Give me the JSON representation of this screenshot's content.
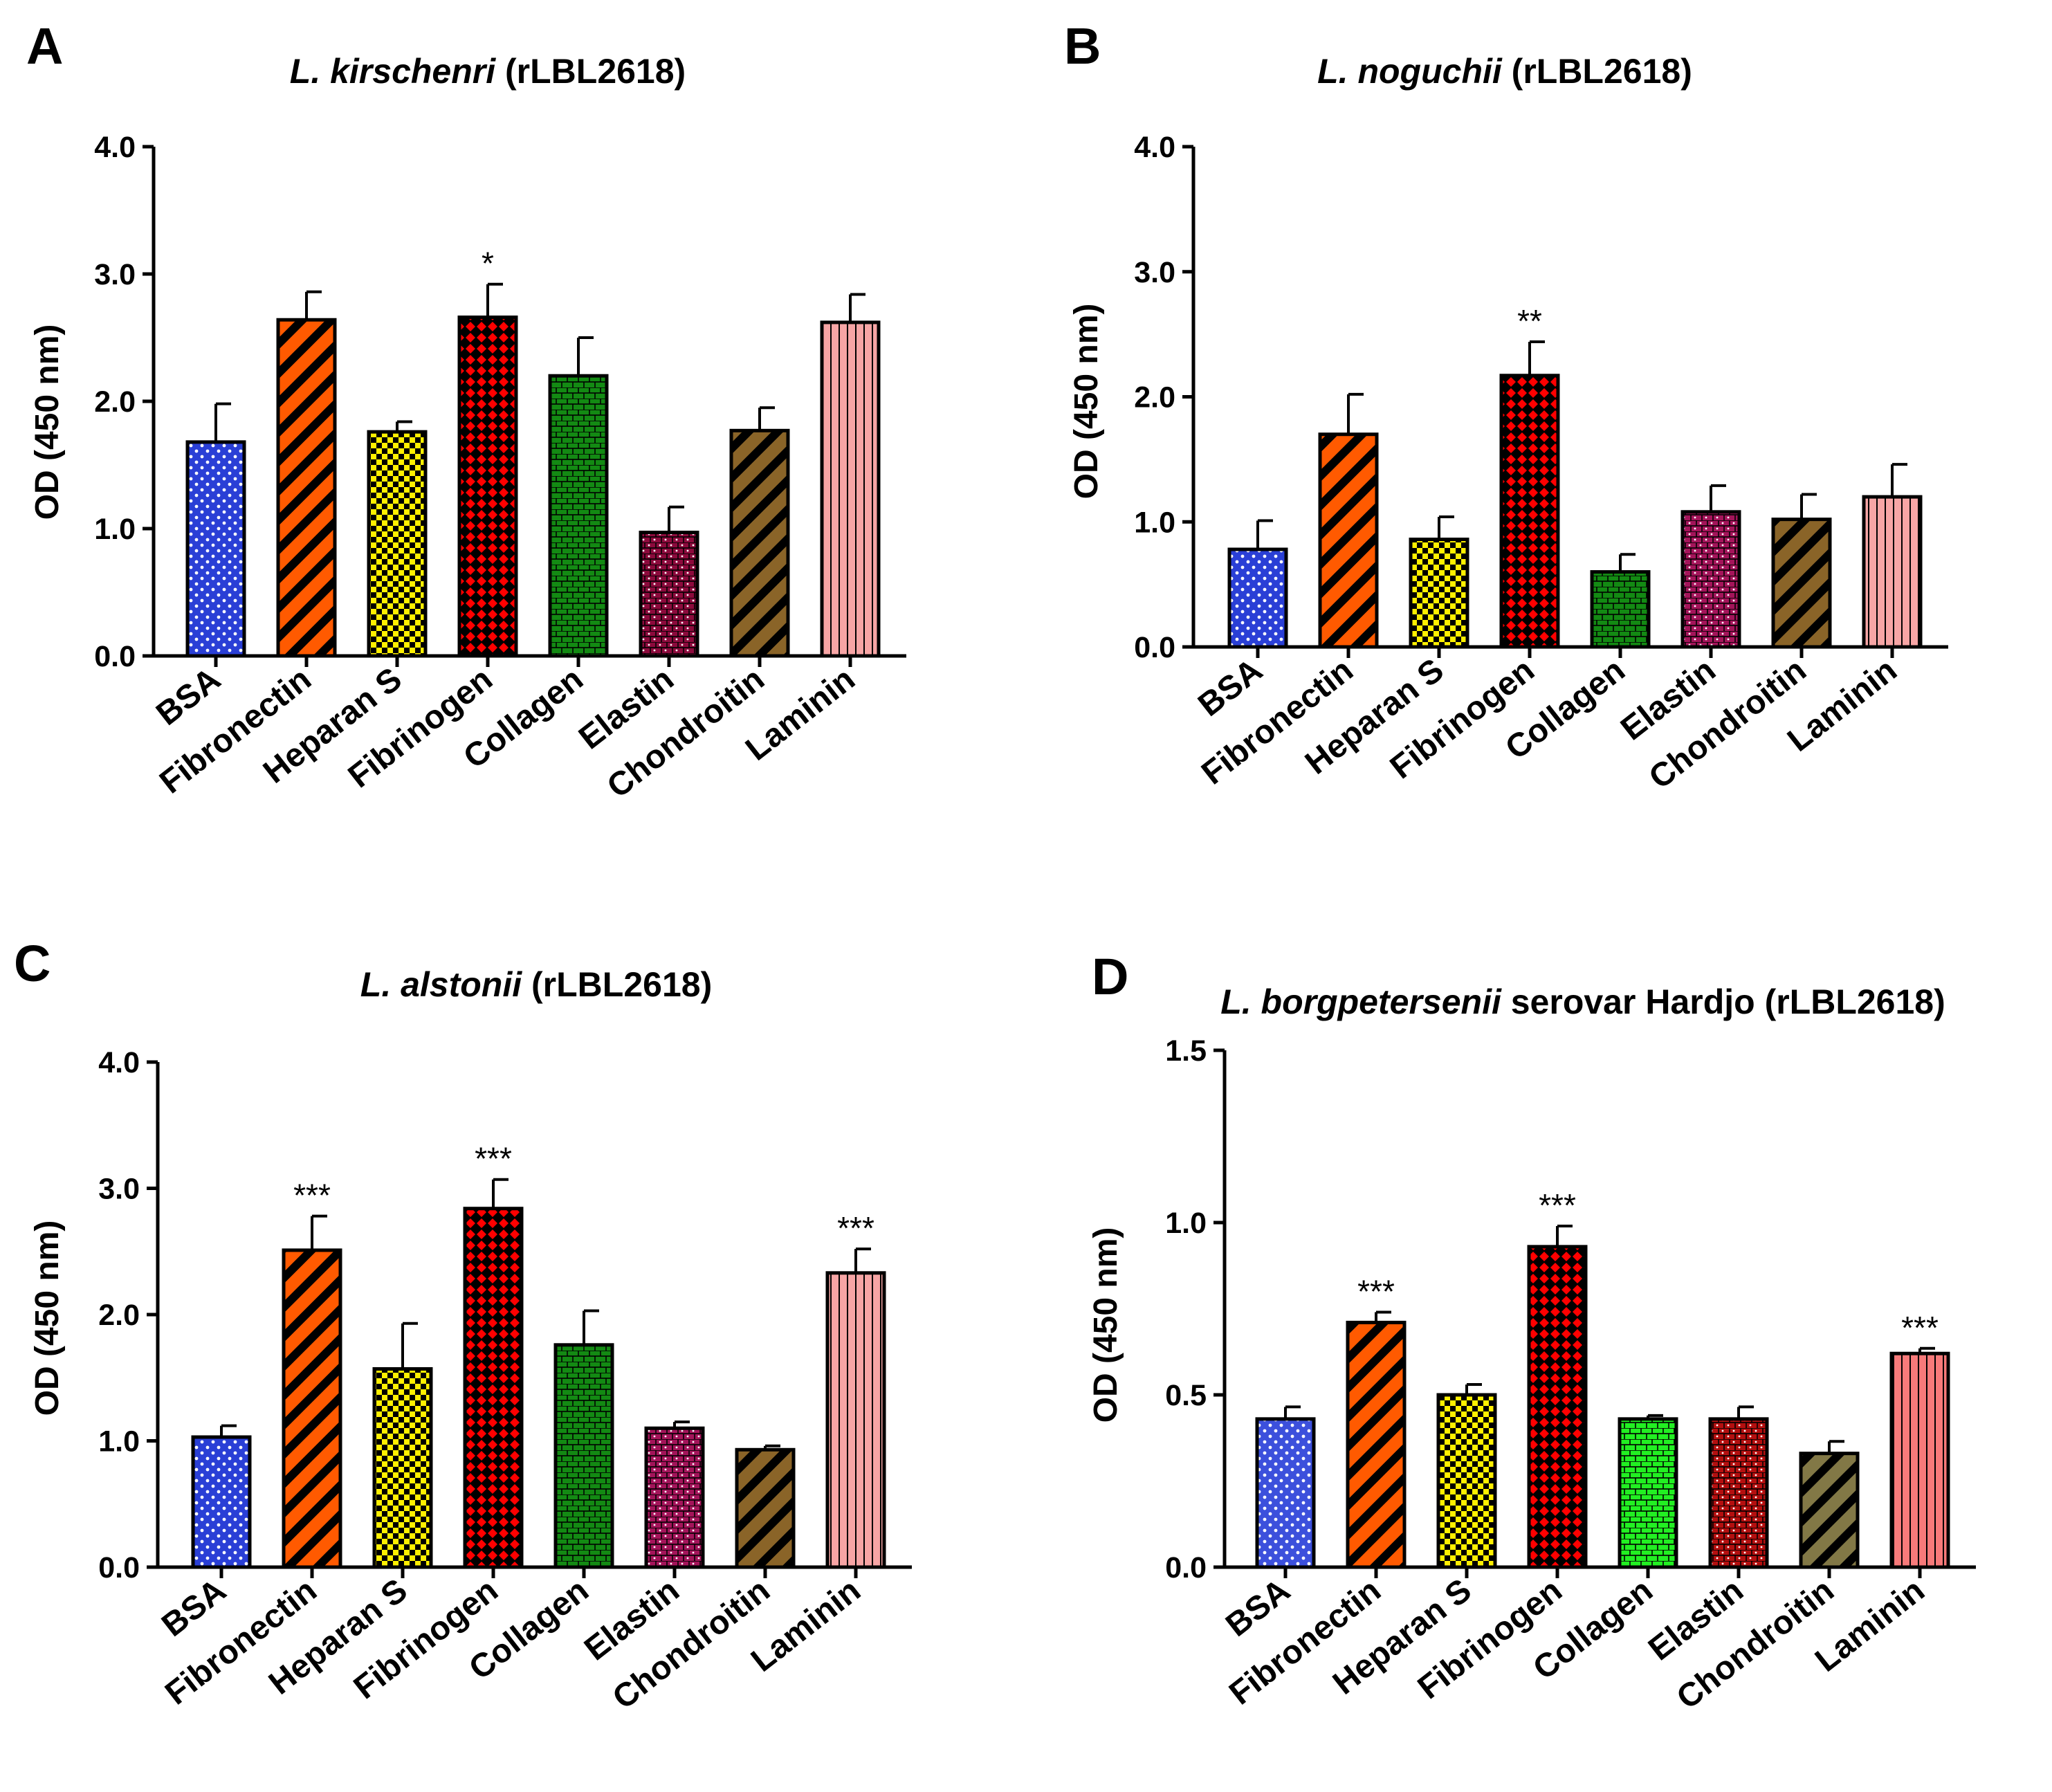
{
  "figure": {
    "panels": [
      {
        "letter": "A",
        "title_italic": "L. kirschenri",
        "title_rest": " (rLBL2618)"
      },
      {
        "letter": "B",
        "title_italic": "L. noguchii",
        "title_rest": " (rLBL2618)"
      },
      {
        "letter": "C",
        "title_italic": "L. alstonii",
        "title_rest": " (rLBL2618)"
      },
      {
        "letter": "D",
        "title_italic": "L. borgpetersenii",
        "title_rest": " serovar Hardjo (rLBL2618)"
      }
    ]
  },
  "chart_data": [
    {
      "type": "bar",
      "panel": "A",
      "title": "L. kirschenri (rLBL2618)",
      "xlabel": "",
      "ylabel": "OD (450 nm)",
      "ylim": [
        0,
        4
      ],
      "yticks": [
        "0.0",
        "1.0",
        "2.0",
        "3.0",
        "4.0"
      ],
      "categories": [
        "BSA",
        "Fibronectin",
        "Heparan S",
        "Fibrinogen",
        "Collagen",
        "Elastin",
        "Chondroitin",
        "Laminin"
      ],
      "values": [
        1.68,
        2.64,
        1.76,
        2.66,
        2.2,
        0.97,
        1.77,
        2.62
      ],
      "errors": [
        0.3,
        0.22,
        0.08,
        0.26,
        0.3,
        0.2,
        0.18,
        0.22
      ],
      "significance": [
        "",
        "",
        "",
        "*",
        "",
        "",
        "",
        ""
      ],
      "colors": [
        "#2a3fd6",
        "#ff5a00",
        "#fff000",
        "#ff0000",
        "#138a13",
        "#8c0a3c",
        "#8a6428",
        "#f7a5a5"
      ]
    },
    {
      "type": "bar",
      "panel": "B",
      "title": "L. noguchii (rLBL2618)",
      "xlabel": "",
      "ylabel": "OD (450 nm)",
      "ylim": [
        0,
        4
      ],
      "yticks": [
        "0.0",
        "1.0",
        "2.0",
        "3.0",
        "4.0"
      ],
      "categories": [
        "BSA",
        "Fibronectin",
        "Heparan S",
        "Fibrinogen",
        "Collagen",
        "Elastin",
        "Chondroitin",
        "Laminin"
      ],
      "values": [
        0.78,
        1.7,
        0.86,
        2.17,
        0.6,
        1.08,
        1.02,
        1.2
      ],
      "errors": [
        0.23,
        0.32,
        0.18,
        0.27,
        0.14,
        0.21,
        0.2,
        0.26
      ],
      "significance": [
        "",
        "",
        "",
        "**",
        "",
        "",
        "",
        ""
      ],
      "colors": [
        "#2a3fd6",
        "#ff5a00",
        "#fff000",
        "#ff0000",
        "#138a13",
        "#a4145a",
        "#8a6428",
        "#f7a5a5"
      ]
    },
    {
      "type": "bar",
      "panel": "C",
      "title": "L. alstonii (rLBL2618)",
      "xlabel": "",
      "ylabel": "OD (450 nm)",
      "ylim": [
        0,
        4
      ],
      "yticks": [
        "0.0",
        "1.0",
        "2.0",
        "3.0",
        "4.0"
      ],
      "categories": [
        "BSA",
        "Fibronectin",
        "Heparan S",
        "Fibrinogen",
        "Collagen",
        "Elastin",
        "Chondroitin",
        "Laminin"
      ],
      "values": [
        1.03,
        2.51,
        1.57,
        2.84,
        1.76,
        1.1,
        0.93,
        2.33
      ],
      "errors": [
        0.09,
        0.27,
        0.36,
        0.23,
        0.27,
        0.05,
        0.03,
        0.19
      ],
      "significance": [
        "",
        "***",
        "",
        "***",
        "",
        "",
        "",
        "***"
      ],
      "colors": [
        "#2a3fd6",
        "#ff5a00",
        "#fff000",
        "#ff0000",
        "#138a13",
        "#a4145a",
        "#8a6428",
        "#f7a5a5"
      ]
    },
    {
      "type": "bar",
      "panel": "D",
      "title": "L. borgpetersenii serovar Hardjo (rLBL2618)",
      "xlabel": "",
      "ylabel": "OD (450 nm)",
      "ylim": [
        0,
        1.5
      ],
      "yticks": [
        "0.0",
        "0.5",
        "1.0",
        "1.5"
      ],
      "categories": [
        "BSA",
        "Fibronectin",
        "Heparan S",
        "Fibrinogen",
        "Collagen",
        "Elastin",
        "Chondroitin",
        "Laminin"
      ],
      "values": [
        0.43,
        0.71,
        0.5,
        0.93,
        0.43,
        0.43,
        0.33,
        0.62
      ],
      "errors": [
        0.035,
        0.03,
        0.03,
        0.06,
        0.01,
        0.035,
        0.035,
        0.015
      ],
      "significance": [
        "",
        "***",
        "",
        "***",
        "",
        "",
        "",
        "***"
      ],
      "colors": [
        "#3c50dc",
        "#ff5a00",
        "#fff000",
        "#ff0000",
        "#22f022",
        "#b40f0f",
        "#827846",
        "#f77a7a"
      ]
    }
  ]
}
